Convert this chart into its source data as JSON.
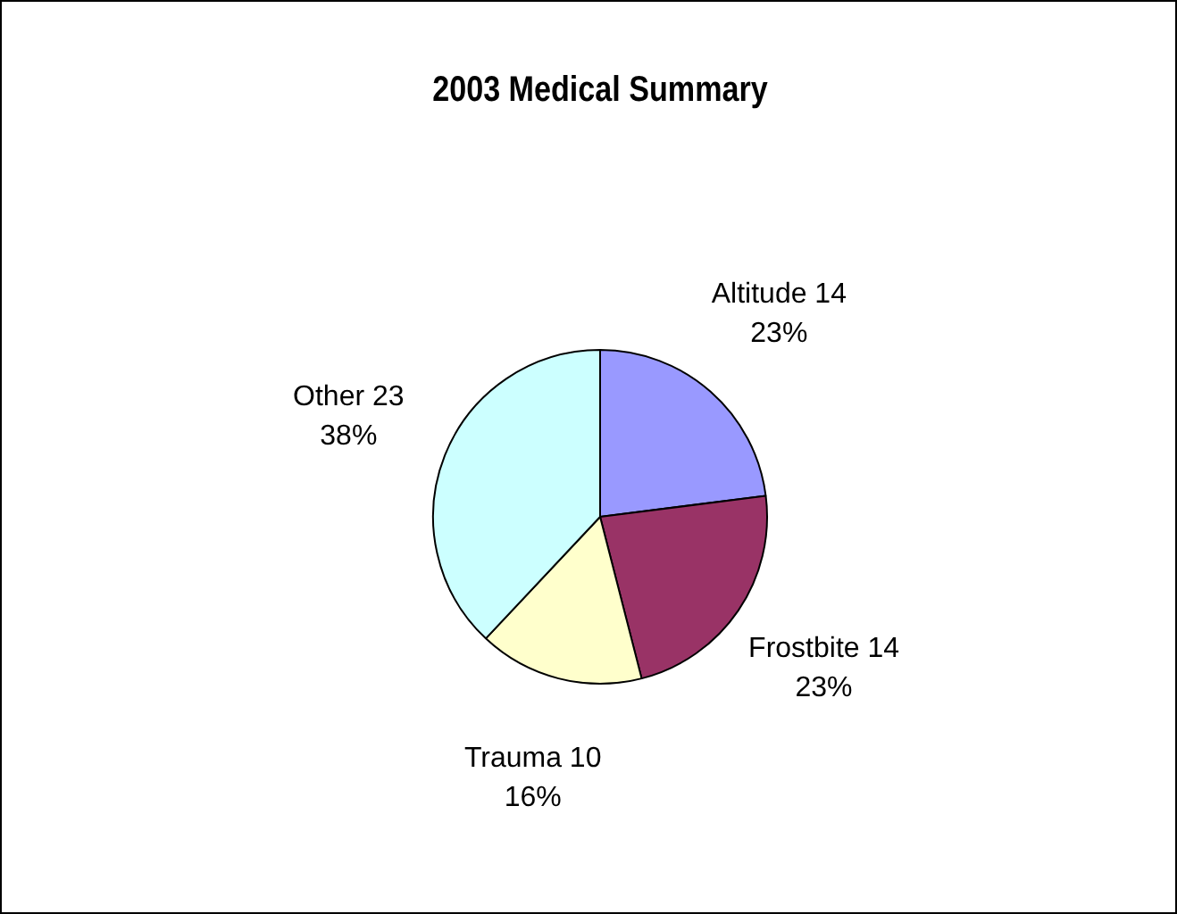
{
  "chart_data": {
    "type": "pie",
    "title": "2003 Medical Summary",
    "categories": [
      "Altitude 14",
      "Frostbite 14",
      "Trauma 10",
      "Other 23"
    ],
    "values": [
      23,
      23,
      16,
      38
    ],
    "colors": [
      "#9999ff",
      "#993366",
      "#ffffcc",
      "#ccffff"
    ],
    "value_labels": [
      "23%",
      "23%",
      "16%",
      "38%"
    ],
    "legend": false
  }
}
